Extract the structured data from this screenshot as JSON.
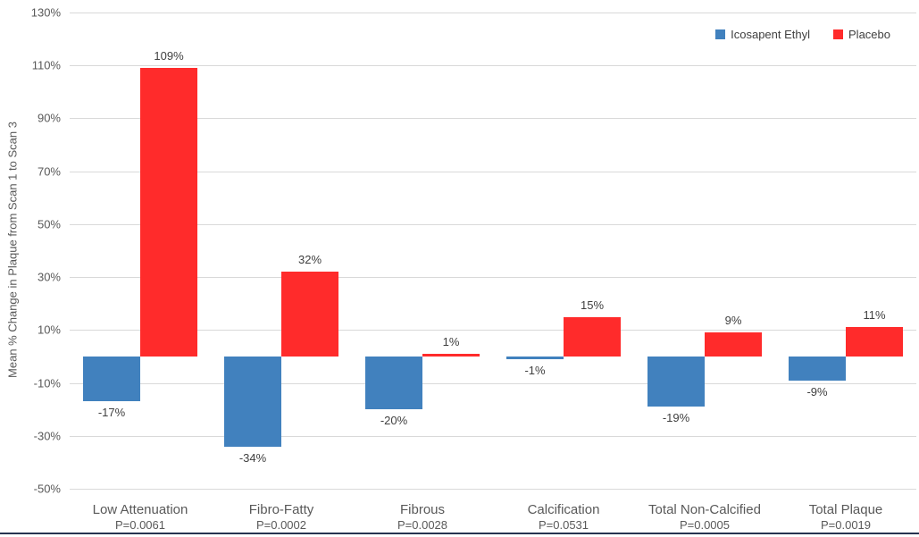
{
  "chart_data": {
    "type": "bar",
    "title": "",
    "xlabel": "",
    "ylabel": "Mean % Change in Plaque from Scan 1 to Scan 3",
    "ylim": [
      -50,
      130
    ],
    "ytick_step": 20,
    "ytick_suffix": "%",
    "grid": "horizontal-only",
    "gridline_color": "#d9d9d9",
    "legend_position": "top-right",
    "categories": [
      "Low Attenuation",
      "Fibro-Fatty",
      "Fibrous",
      "Calcification",
      "Total Non-Calcified",
      "Total Plaque"
    ],
    "category_sublabels": [
      "P=0.0061",
      "P=0.0002",
      "P=0.0028",
      "P=0.0531",
      "P=0.0005",
      "P=0.0019"
    ],
    "series": [
      {
        "name": "Icosapent Ethyl",
        "color": "#4181be",
        "values": [
          -17,
          -34,
          -20,
          -1,
          -19,
          -9
        ],
        "labels": [
          "-17%",
          "-34%",
          "-20%",
          "-1%",
          "-19%",
          "-9%"
        ]
      },
      {
        "name": "Placebo",
        "color": "#ff2b2b",
        "values": [
          109,
          32,
          1,
          15,
          9,
          11
        ],
        "labels": [
          "109%",
          "32%",
          "1%",
          "15%",
          "9%",
          "11%"
        ]
      }
    ]
  },
  "colors": {
    "axis_text": "#595959",
    "data_label_text": "#404040",
    "bottom_border": "#26334f"
  }
}
